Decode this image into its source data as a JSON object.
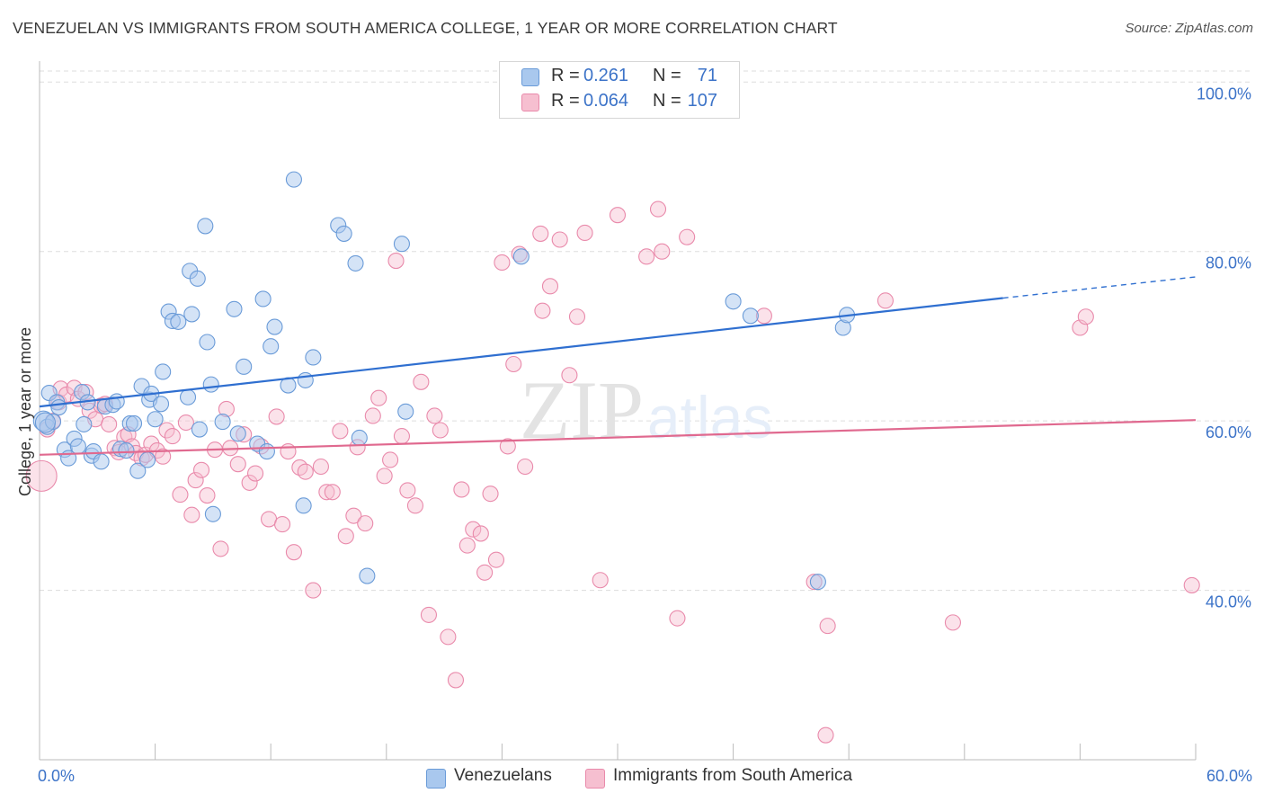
{
  "header": {
    "title": "VENEZUELAN VS IMMIGRANTS FROM SOUTH AMERICA COLLEGE, 1 YEAR OR MORE CORRELATION CHART",
    "source": "Source: ZipAtlas.com"
  },
  "legend_top": {
    "rows": [
      {
        "r_label": "R =",
        "r_value": "0.261",
        "n_label": "N =",
        "n_value": "71"
      },
      {
        "r_label": "R =",
        "r_value": "0.064",
        "n_label": "N =",
        "n_value": "107"
      }
    ]
  },
  "legend_bottom": {
    "items": [
      {
        "label": "Venezuelans"
      },
      {
        "label": "Immigrants from South America"
      }
    ]
  },
  "watermark": {
    "zip": "ZIP",
    "atlas": "atlas"
  },
  "colors": {
    "blue_fill": "#a9c8ee",
    "blue_stroke": "#6a9bd8",
    "blue_line": "#2f6fd0",
    "pink_fill": "#f6bfd0",
    "pink_stroke": "#e98aab",
    "pink_line": "#e0698f",
    "tick_text": "#3c73c8",
    "grid": "#dddddd"
  },
  "chart_data": {
    "type": "scatter",
    "title": "VENEZUELAN VS IMMIGRANTS FROM SOUTH AMERICA COLLEGE, 1 YEAR OR MORE CORRELATION CHART",
    "xlabel": "",
    "ylabel": "College, 1 year or more",
    "xlim": [
      0,
      60
    ],
    "ylim": [
      20,
      103
    ],
    "x_tick_labels": [
      "0.0%",
      "60.0%"
    ],
    "y_ticks": [
      40,
      60,
      80,
      100
    ],
    "y_tick_labels": [
      "40.0%",
      "60.0%",
      "80.0%",
      "100.0%"
    ],
    "grid": true,
    "legend_position": "top-center",
    "series": [
      {
        "name": "Venezuelans",
        "r": 0.261,
        "n": 71,
        "trend": {
          "x0": 0,
          "y0": 61.7,
          "x1": 50,
          "y1": 74.5,
          "dashed_to_x": 60,
          "dashed_to_y": 77.0
        },
        "points": [
          [
            0.2,
            60.0
          ],
          [
            0.4,
            59.3
          ],
          [
            0.5,
            63.3
          ],
          [
            0.7,
            59.9
          ],
          [
            0.9,
            62.2
          ],
          [
            1.0,
            61.6
          ],
          [
            1.3,
            56.6
          ],
          [
            1.5,
            55.6
          ],
          [
            1.8,
            57.9
          ],
          [
            2.0,
            57.0
          ],
          [
            2.3,
            59.6
          ],
          [
            2.2,
            63.4
          ],
          [
            2.5,
            62.2
          ],
          [
            2.7,
            55.9
          ],
          [
            2.8,
            56.4
          ],
          [
            3.2,
            55.2
          ],
          [
            3.4,
            61.7
          ],
          [
            3.8,
            61.9
          ],
          [
            4.0,
            62.3
          ],
          [
            4.2,
            56.7
          ],
          [
            4.5,
            56.5
          ],
          [
            4.7,
            59.7
          ],
          [
            4.9,
            59.7
          ],
          [
            5.1,
            54.1
          ],
          [
            5.3,
            64.1
          ],
          [
            5.6,
            55.4
          ],
          [
            5.7,
            62.5
          ],
          [
            5.8,
            63.2
          ],
          [
            6.0,
            60.2
          ],
          [
            6.3,
            62.0
          ],
          [
            6.4,
            65.8
          ],
          [
            6.7,
            72.9
          ],
          [
            6.9,
            71.8
          ],
          [
            7.2,
            71.7
          ],
          [
            7.7,
            62.8
          ],
          [
            7.8,
            77.7
          ],
          [
            7.9,
            72.6
          ],
          [
            8.3,
            59.0
          ],
          [
            8.6,
            83.0
          ],
          [
            8.7,
            69.3
          ],
          [
            8.9,
            64.3
          ],
          [
            9.0,
            49.0
          ],
          [
            8.2,
            76.8
          ],
          [
            9.5,
            59.9
          ],
          [
            10.1,
            73.2
          ],
          [
            10.3,
            58.5
          ],
          [
            10.6,
            66.4
          ],
          [
            11.3,
            57.3
          ],
          [
            11.6,
            74.4
          ],
          [
            11.8,
            56.4
          ],
          [
            12.0,
            68.8
          ],
          [
            12.2,
            71.1
          ],
          [
            12.9,
            64.2
          ],
          [
            13.2,
            88.5
          ],
          [
            13.7,
            50.0
          ],
          [
            13.8,
            64.8
          ],
          [
            14.2,
            67.5
          ],
          [
            15.5,
            83.1
          ],
          [
            15.8,
            82.1
          ],
          [
            16.4,
            78.6
          ],
          [
            16.6,
            58.0
          ],
          [
            17.0,
            41.7
          ],
          [
            18.8,
            80.9
          ],
          [
            19.0,
            61.1
          ],
          [
            25.0,
            79.4
          ],
          [
            36.0,
            74.1
          ],
          [
            36.9,
            72.4
          ],
          [
            40.4,
            41.0
          ],
          [
            41.7,
            71.0
          ],
          [
            41.9,
            72.5
          ],
          [
            0.3,
            59.8
          ]
        ]
      },
      {
        "name": "Immigrants from South America",
        "r": 0.064,
        "n": 107,
        "trend": {
          "x0": 0,
          "y0": 56.0,
          "x1": 60,
          "y1": 60.1
        },
        "points": [
          [
            0.1,
            53.5
          ],
          [
            0.4,
            59.0
          ],
          [
            0.7,
            60.0
          ],
          [
            1.0,
            62.2
          ],
          [
            1.1,
            63.8
          ],
          [
            1.4,
            63.1
          ],
          [
            1.8,
            63.9
          ],
          [
            2.0,
            62.6
          ],
          [
            2.4,
            63.4
          ],
          [
            2.6,
            61.2
          ],
          [
            2.9,
            60.2
          ],
          [
            3.2,
            61.8
          ],
          [
            3.4,
            62.0
          ],
          [
            3.6,
            59.6
          ],
          [
            3.9,
            56.8
          ],
          [
            4.1,
            56.3
          ],
          [
            4.4,
            58.1
          ],
          [
            4.6,
            58.4
          ],
          [
            4.8,
            57.0
          ],
          [
            5.0,
            56.2
          ],
          [
            5.3,
            55.6
          ],
          [
            5.5,
            56.0
          ],
          [
            5.8,
            57.3
          ],
          [
            6.1,
            56.5
          ],
          [
            6.4,
            55.8
          ],
          [
            6.6,
            58.9
          ],
          [
            6.9,
            58.2
          ],
          [
            7.3,
            51.3
          ],
          [
            7.6,
            59.8
          ],
          [
            7.9,
            48.9
          ],
          [
            8.1,
            53.0
          ],
          [
            8.4,
            54.2
          ],
          [
            8.7,
            51.2
          ],
          [
            9.1,
            56.6
          ],
          [
            9.4,
            44.9
          ],
          [
            9.7,
            61.4
          ],
          [
            9.9,
            56.8
          ],
          [
            10.3,
            54.9
          ],
          [
            10.6,
            58.4
          ],
          [
            10.9,
            52.7
          ],
          [
            11.2,
            53.8
          ],
          [
            11.5,
            57.0
          ],
          [
            11.9,
            48.4
          ],
          [
            12.3,
            60.5
          ],
          [
            12.6,
            47.8
          ],
          [
            12.9,
            56.4
          ],
          [
            13.2,
            44.5
          ],
          [
            13.5,
            54.5
          ],
          [
            13.8,
            54.0
          ],
          [
            14.2,
            40.0
          ],
          [
            14.6,
            54.6
          ],
          [
            14.9,
            51.6
          ],
          [
            15.2,
            51.6
          ],
          [
            15.6,
            58.8
          ],
          [
            15.9,
            46.4
          ],
          [
            16.3,
            48.8
          ],
          [
            16.5,
            56.9
          ],
          [
            16.9,
            47.9
          ],
          [
            17.3,
            60.6
          ],
          [
            17.6,
            62.7
          ],
          [
            17.9,
            53.5
          ],
          [
            18.2,
            55.4
          ],
          [
            18.5,
            78.9
          ],
          [
            18.8,
            58.2
          ],
          [
            19.1,
            51.8
          ],
          [
            19.5,
            50.0
          ],
          [
            19.8,
            64.6
          ],
          [
            20.2,
            37.1
          ],
          [
            20.5,
            60.6
          ],
          [
            20.8,
            58.9
          ],
          [
            21.2,
            34.5
          ],
          [
            21.6,
            29.4
          ],
          [
            21.9,
            51.9
          ],
          [
            22.2,
            45.3
          ],
          [
            22.5,
            47.2
          ],
          [
            22.9,
            46.7
          ],
          [
            23.1,
            42.1
          ],
          [
            23.4,
            51.4
          ],
          [
            23.7,
            43.6
          ],
          [
            24.0,
            78.7
          ],
          [
            24.3,
            57.0
          ],
          [
            24.6,
            66.7
          ],
          [
            24.9,
            79.7
          ],
          [
            25.2,
            54.6
          ],
          [
            26.0,
            82.1
          ],
          [
            26.5,
            75.9
          ],
          [
            26.1,
            73.0
          ],
          [
            27.0,
            81.4
          ],
          [
            27.5,
            65.4
          ],
          [
            27.9,
            72.3
          ],
          [
            28.3,
            82.2
          ],
          [
            29.1,
            41.2
          ],
          [
            30.0,
            84.3
          ],
          [
            31.5,
            79.4
          ],
          [
            32.1,
            85.0
          ],
          [
            32.3,
            80.0
          ],
          [
            33.1,
            36.7
          ],
          [
            33.6,
            81.7
          ],
          [
            37.6,
            72.4
          ],
          [
            40.2,
            41.0
          ],
          [
            40.8,
            22.9
          ],
          [
            40.9,
            35.8
          ],
          [
            43.9,
            74.2
          ],
          [
            47.4,
            36.2
          ],
          [
            54.0,
            71.0
          ],
          [
            54.3,
            72.3
          ],
          [
            59.8,
            40.6
          ]
        ]
      }
    ]
  }
}
